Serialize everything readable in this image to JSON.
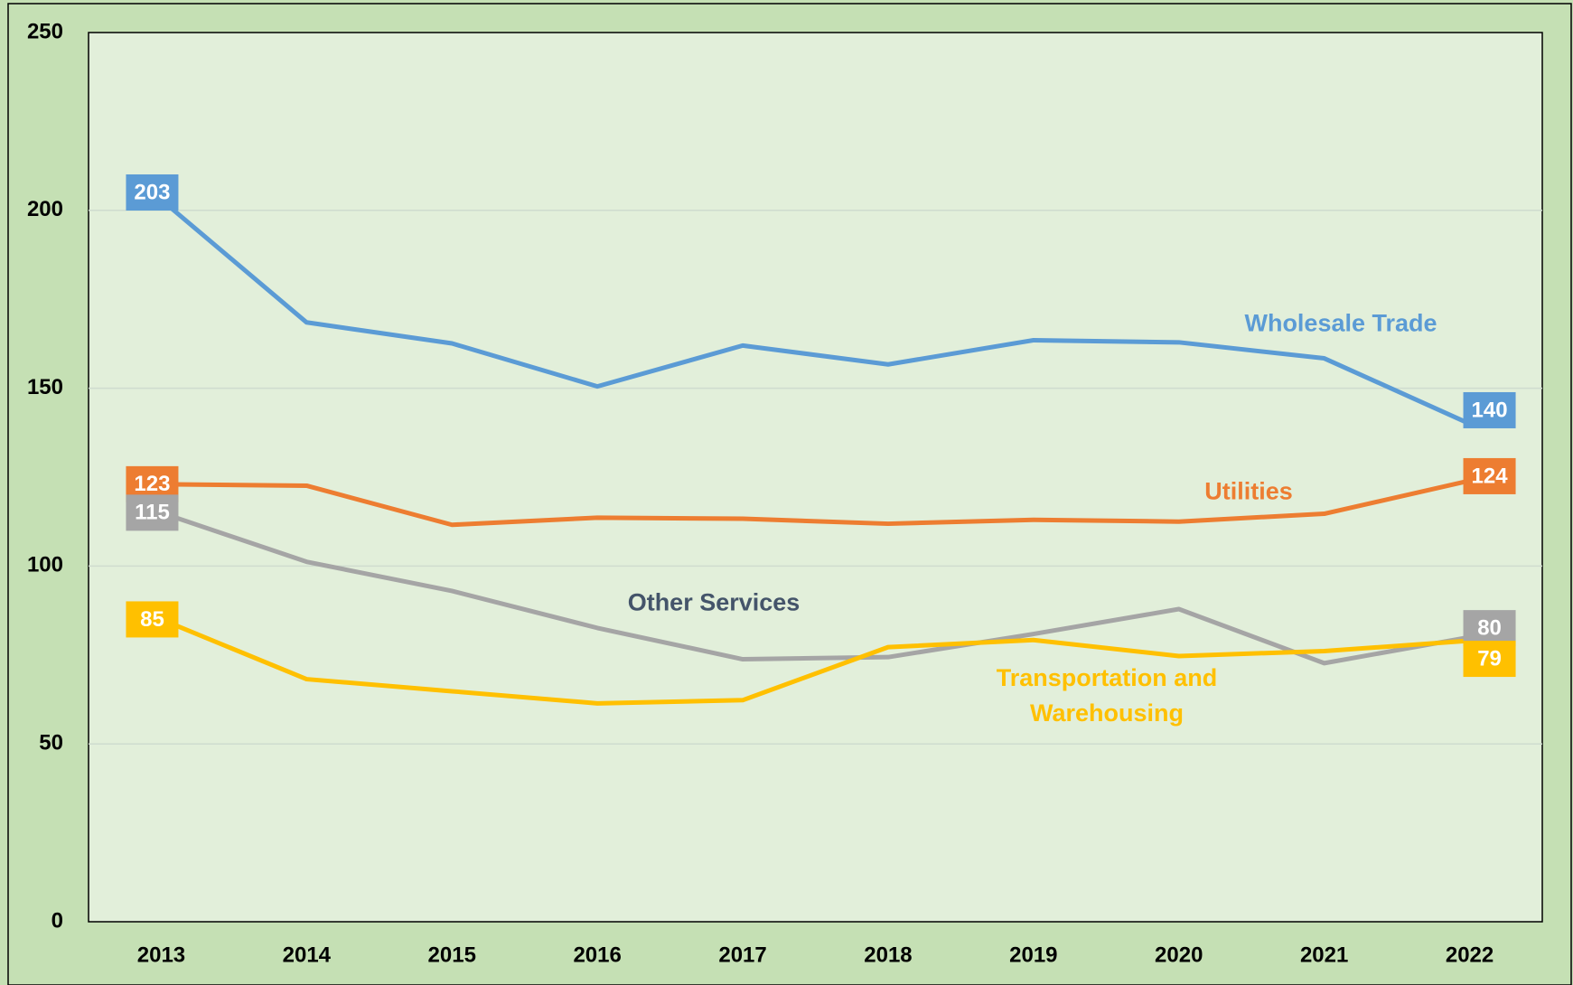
{
  "chart_data": {
    "type": "line",
    "categories": [
      "2013",
      "2014",
      "2015",
      "2016",
      "2017",
      "2018",
      "2019",
      "2020",
      "2021",
      "2022"
    ],
    "series": [
      {
        "name": "Wholesale Trade",
        "color": "#5b9bd5",
        "values": [
          203,
          168.5,
          162.6,
          150.5,
          162,
          156.7,
          163.5,
          162.9,
          158.4,
          140
        ]
      },
      {
        "name": "Utilities",
        "color": "#ed7d31",
        "values": [
          123,
          122.6,
          111.6,
          113.6,
          113.3,
          111.9,
          113,
          112.5,
          114.7,
          124
        ]
      },
      {
        "name": "Other Services",
        "color": "#a5a5a5",
        "label_color": "#44546a",
        "values": [
          115,
          101.2,
          93,
          82.6,
          73.8,
          74.4,
          80.9,
          87.9,
          72.7,
          80
        ]
      },
      {
        "name": "Transportation and Warehousing",
        "color": "#ffc000",
        "values": [
          85,
          68.2,
          64.8,
          61.4,
          62.3,
          77.2,
          79.2,
          74.7,
          76.1,
          79
        ]
      }
    ],
    "ylim": [
      0,
      250
    ],
    "yticks": [
      0,
      50,
      100,
      150,
      200,
      250
    ],
    "grid": true
  }
}
